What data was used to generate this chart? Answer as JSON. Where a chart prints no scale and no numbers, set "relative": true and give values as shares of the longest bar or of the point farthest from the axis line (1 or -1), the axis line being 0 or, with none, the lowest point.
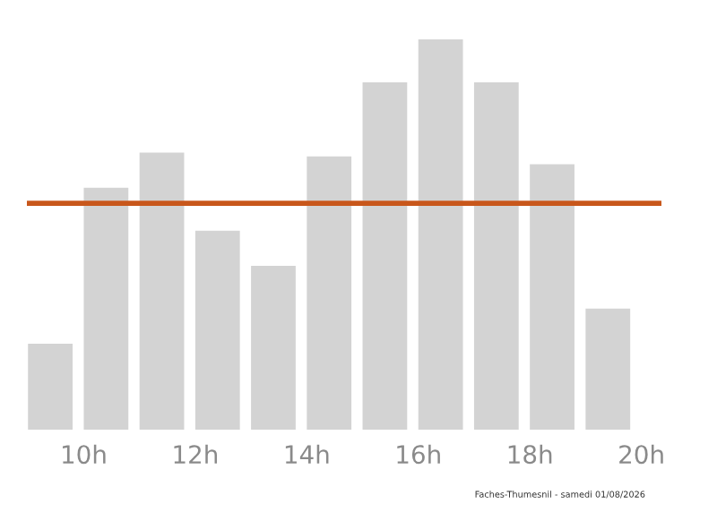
{
  "chart_data": {
    "type": "bar",
    "relative": true,
    "x": [
      9.4,
      10.4,
      11.4,
      12.4,
      13.4,
      14.4,
      15.4,
      16.4,
      17.4,
      18.4,
      19.4
    ],
    "values": [
      0.22,
      0.62,
      0.71,
      0.51,
      0.42,
      0.7,
      0.89,
      1,
      0.89,
      0.68,
      0.31
    ],
    "color": "#d3d3d3",
    "xlim": [
      8.98,
      20.36
    ],
    "xticks": [
      {
        "value": 10,
        "label": "10h"
      },
      {
        "value": 12,
        "label": "12h"
      },
      {
        "value": 14,
        "label": "14h"
      },
      {
        "value": 16,
        "label": "16h"
      },
      {
        "value": 18,
        "label": "18h"
      },
      {
        "value": 20,
        "label": "20h"
      }
    ],
    "ref_lines": [
      {
        "axis": "y",
        "value": 0.58,
        "label": null,
        "color": "#c8571b"
      }
    ],
    "grid": false,
    "legend": false,
    "annotations": [
      "Faches-Thumesnil - samedi 01/08/2026"
    ]
  }
}
